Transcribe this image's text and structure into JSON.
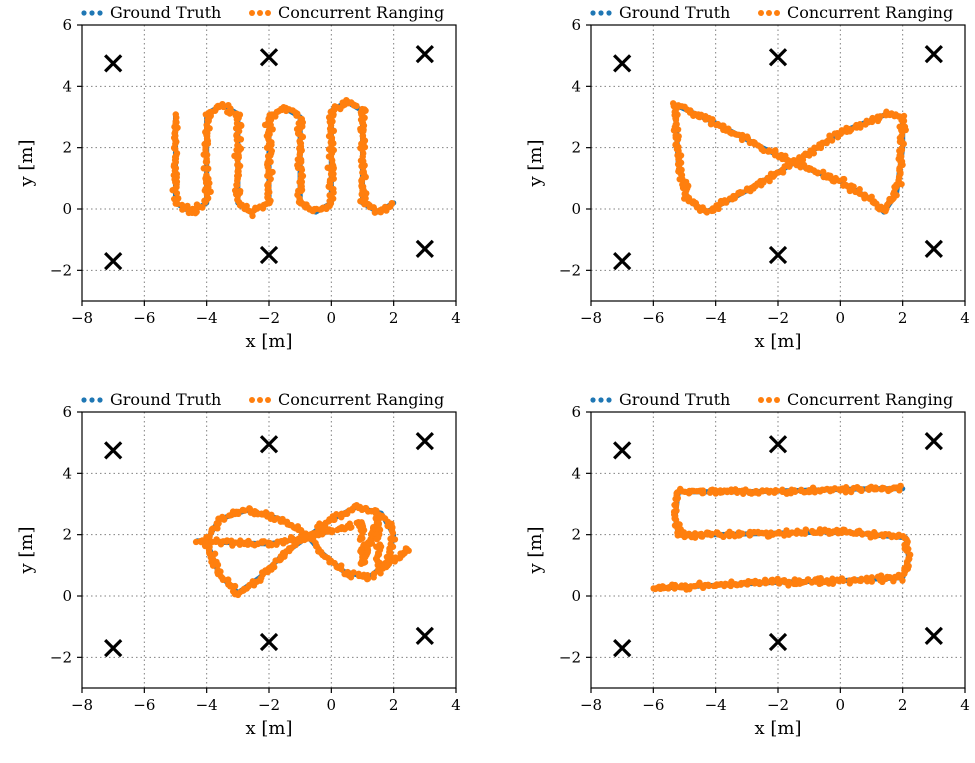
{
  "figure": {
    "colors": {
      "ground_truth": "#1f77b4",
      "concurrent_ranging": "#ff7f0e",
      "anchor": "#000000",
      "grid": "#808080"
    }
  },
  "chart_data": [
    {
      "type": "scatter",
      "title": "",
      "trajectory": "serpentine",
      "xlabel": "x [m]",
      "ylabel": "y [m]",
      "xlim": [
        -8,
        4
      ],
      "ylim": [
        -3,
        6
      ],
      "xticks": [
        -8,
        -6,
        -4,
        -2,
        0,
        2,
        4
      ],
      "yticks": [
        -2,
        0,
        2,
        4,
        6
      ],
      "xtick_labels": [
        "−8",
        "−6",
        "−4",
        "−2",
        "0",
        "2",
        "4"
      ],
      "ytick_labels": [
        "−2",
        "0",
        "2",
        "4",
        "6"
      ],
      "grid": true,
      "legend": "top",
      "legend_entries": [
        "Ground Truth",
        "Concurrent Ranging"
      ],
      "anchors": [
        [
          -7,
          4.75
        ],
        [
          -2,
          4.95
        ],
        [
          3,
          5.05
        ],
        [
          -7,
          -1.7
        ],
        [
          -2,
          -1.5
        ],
        [
          3,
          -1.3
        ]
      ],
      "series": [
        {
          "name": "Ground Truth",
          "points": [
            [
              -5,
              3
            ],
            [
              -5,
              2
            ],
            [
              -5,
              1
            ],
            [
              -5,
              0.2
            ],
            [
              -4.5,
              -0.1
            ],
            [
              -4,
              0.2
            ],
            [
              -4,
              1
            ],
            [
              -4,
              2
            ],
            [
              -4,
              3.1
            ],
            [
              -3.5,
              3.4
            ],
            [
              -3,
              3.1
            ],
            [
              -3,
              2
            ],
            [
              -3,
              1
            ],
            [
              -3,
              0.2
            ],
            [
              -2.6,
              -0.1
            ],
            [
              -2,
              0.2
            ],
            [
              -2,
              1
            ],
            [
              -2,
              2
            ],
            [
              -2,
              3
            ],
            [
              -1.5,
              3.3
            ],
            [
              -1,
              3
            ],
            [
              -1,
              2
            ],
            [
              -1,
              1
            ],
            [
              -1,
              0.2
            ],
            [
              -0.5,
              -0.1
            ],
            [
              0,
              0.2
            ],
            [
              0,
              1
            ],
            [
              0,
              2
            ],
            [
              0,
              3.2
            ],
            [
              0.5,
              3.5
            ],
            [
              1,
              3.2
            ],
            [
              1,
              2
            ],
            [
              1,
              1
            ],
            [
              1,
              0.2
            ],
            [
              1.5,
              -0.1
            ],
            [
              2,
              0.2
            ]
          ]
        },
        {
          "name": "Concurrent Ranging",
          "points": [
            [
              -5,
              3
            ],
            [
              -5,
              2
            ],
            [
              -5,
              1
            ],
            [
              -5,
              0.2
            ],
            [
              -4.5,
              -0.1
            ],
            [
              -4,
              0.2
            ],
            [
              -4,
              1
            ],
            [
              -4,
              2
            ],
            [
              -4,
              3.1
            ],
            [
              -3.5,
              3.4
            ],
            [
              -3,
              3.1
            ],
            [
              -3,
              2
            ],
            [
              -3,
              1
            ],
            [
              -3,
              0.2
            ],
            [
              -2.6,
              -0.1
            ],
            [
              -2,
              0.2
            ],
            [
              -2,
              1
            ],
            [
              -2,
              2
            ],
            [
              -2,
              3
            ],
            [
              -1.5,
              3.3
            ],
            [
              -1,
              3
            ],
            [
              -1,
              2
            ],
            [
              -1,
              1
            ],
            [
              -1,
              0.2
            ],
            [
              -0.5,
              -0.1
            ],
            [
              0,
              0.2
            ],
            [
              0,
              1
            ],
            [
              0,
              2
            ],
            [
              0,
              3.2
            ],
            [
              0.5,
              3.5
            ],
            [
              1,
              3.2
            ],
            [
              1,
              2
            ],
            [
              1,
              1
            ],
            [
              1,
              0.2
            ],
            [
              1.5,
              -0.1
            ],
            [
              2,
              0.2
            ]
          ]
        }
      ]
    },
    {
      "type": "scatter",
      "title": "",
      "trajectory": "bowtie",
      "xlabel": "x [m]",
      "ylabel": "y [m]",
      "xlim": [
        -8,
        4
      ],
      "ylim": [
        -3,
        6
      ],
      "xticks": [
        -8,
        -6,
        -4,
        -2,
        0,
        2,
        4
      ],
      "yticks": [
        -2,
        0,
        2,
        4,
        6
      ],
      "xtick_labels": [
        "−8",
        "−6",
        "−4",
        "−2",
        "0",
        "2",
        "4"
      ],
      "ytick_labels": [
        "−2",
        "0",
        "2",
        "4",
        "6"
      ],
      "grid": true,
      "legend": "top",
      "legend_entries": [
        "Ground Truth",
        "Concurrent Ranging"
      ],
      "anchors": [
        [
          -7,
          4.75
        ],
        [
          -2,
          4.95
        ],
        [
          3,
          5.05
        ],
        [
          -7,
          -1.7
        ],
        [
          -2,
          -1.5
        ],
        [
          3,
          -1.3
        ]
      ],
      "series": [
        {
          "name": "Ground Truth",
          "points": [
            [
              -5.3,
              3.4
            ],
            [
              -4,
              2.8
            ],
            [
              -2.5,
              2
            ],
            [
              -1.5,
              1.5
            ],
            [
              0,
              0.9
            ],
            [
              1,
              0.3
            ],
            [
              1.4,
              -0.1
            ],
            [
              1.8,
              0.5
            ],
            [
              2,
              2
            ],
            [
              2,
              3
            ],
            [
              1.5,
              3.1
            ],
            [
              0,
              2.5
            ],
            [
              -1.5,
              1.5
            ],
            [
              -3,
              0.6
            ],
            [
              -4.3,
              -0.1
            ],
            [
              -4.9,
              0.3
            ],
            [
              -5.2,
              1.5
            ],
            [
              -5.3,
              3.4
            ]
          ]
        },
        {
          "name": "Concurrent Ranging",
          "points": [
            [
              -5.3,
              3.4
            ],
            [
              -4,
              2.8
            ],
            [
              -2.5,
              2
            ],
            [
              -1.5,
              1.5
            ],
            [
              0,
              0.9
            ],
            [
              1,
              0.3
            ],
            [
              1.4,
              -0.1
            ],
            [
              1.8,
              0.5
            ],
            [
              2,
              2
            ],
            [
              2,
              3
            ],
            [
              1.5,
              3.1
            ],
            [
              0,
              2.5
            ],
            [
              -1.5,
              1.5
            ],
            [
              -3,
              0.6
            ],
            [
              -4.3,
              -0.1
            ],
            [
              -4.9,
              0.3
            ],
            [
              -5.2,
              1.5
            ],
            [
              -5.3,
              3.4
            ]
          ]
        }
      ]
    },
    {
      "type": "scatter",
      "title": "",
      "trajectory": "figure-eight",
      "xlabel": "x [m]",
      "ylabel": "y [m]",
      "xlim": [
        -8,
        4
      ],
      "ylim": [
        -3,
        6
      ],
      "xticks": [
        -8,
        -6,
        -4,
        -2,
        0,
        2,
        4
      ],
      "yticks": [
        -2,
        0,
        2,
        4,
        6
      ],
      "xtick_labels": [
        "−8",
        "−6",
        "−4",
        "−2",
        "0",
        "2",
        "4"
      ],
      "ytick_labels": [
        "−2",
        "0",
        "2",
        "4",
        "6"
      ],
      "grid": true,
      "legend": "top",
      "legend_entries": [
        "Ground Truth",
        "Concurrent Ranging"
      ],
      "anchors": [
        [
          -7,
          4.75
        ],
        [
          -2,
          4.95
        ],
        [
          3,
          5.05
        ],
        [
          -7,
          -1.7
        ],
        [
          -2,
          -1.5
        ],
        [
          3,
          -1.3
        ]
      ],
      "series": [
        {
          "name": "Ground Truth",
          "points": [
            [
              -4.3,
              1.8
            ],
            [
              -3.5,
              1.75
            ],
            [
              -2,
              1.7
            ],
            [
              -0.8,
              1.9
            ],
            [
              0,
              2.5
            ],
            [
              0.8,
              2.9
            ],
            [
              1.6,
              2.7
            ],
            [
              2,
              2
            ],
            [
              1.8,
              1.1
            ],
            [
              1.2,
              0.6
            ],
            [
              0.4,
              0.8
            ],
            [
              -0.3,
              1.4
            ],
            [
              -0.8,
              2
            ],
            [
              -1.6,
              2.5
            ],
            [
              -2.7,
              2.8
            ],
            [
              -3.6,
              2.5
            ],
            [
              -4,
              1.8
            ],
            [
              -3.6,
              0.7
            ],
            [
              -3,
              0.1
            ],
            [
              -2.3,
              0.6
            ],
            [
              -1.5,
              1.4
            ],
            [
              -0.8,
              1.9
            ]
          ]
        },
        {
          "name": "Concurrent Ranging",
          "points": [
            [
              -4.3,
              1.8
            ],
            [
              -3.5,
              1.75
            ],
            [
              -2,
              1.7
            ],
            [
              -0.8,
              1.9
            ],
            [
              0,
              2.5
            ],
            [
              0.8,
              2.9
            ],
            [
              1.6,
              2.7
            ],
            [
              2,
              2
            ],
            [
              1.8,
              1.1
            ],
            [
              1.2,
              0.6
            ],
            [
              0.4,
              0.8
            ],
            [
              -0.3,
              1.4
            ],
            [
              -0.8,
              2
            ],
            [
              -1.6,
              2.5
            ],
            [
              -2.7,
              2.8
            ],
            [
              -3.6,
              2.5
            ],
            [
              -4,
              1.8
            ],
            [
              -3.6,
              0.7
            ],
            [
              -3,
              0.1
            ],
            [
              -2.3,
              0.6
            ],
            [
              -1.5,
              1.4
            ],
            [
              -0.8,
              1.9
            ],
            [
              1,
              2.4
            ],
            [
              1,
              1
            ],
            [
              1.5,
              2.6
            ],
            [
              1.5,
              0.8
            ],
            [
              2.5,
              1.6
            ]
          ]
        }
      ]
    },
    {
      "type": "scatter",
      "title": "",
      "trajectory": "lawnmower",
      "xlabel": "x [m]",
      "ylabel": "y [m]",
      "xlim": [
        -8,
        4
      ],
      "ylim": [
        -3,
        6
      ],
      "xticks": [
        -8,
        -6,
        -4,
        -2,
        0,
        2,
        4
      ],
      "yticks": [
        -2,
        0,
        2,
        4,
        6
      ],
      "xtick_labels": [
        "−8",
        "−6",
        "−4",
        "−2",
        "0",
        "2",
        "4"
      ],
      "ytick_labels": [
        "−2",
        "0",
        "2",
        "4",
        "6"
      ],
      "grid": true,
      "legend": "top",
      "legend_entries": [
        "Ground Truth",
        "Concurrent Ranging"
      ],
      "anchors": [
        [
          -7,
          4.75
        ],
        [
          -2,
          4.95
        ],
        [
          3,
          5.05
        ],
        [
          -7,
          -1.7
        ],
        [
          -2,
          -1.5
        ],
        [
          3,
          -1.3
        ]
      ],
      "series": [
        {
          "name": "Ground Truth",
          "points": [
            [
              -6,
              0.25
            ],
            [
              -4,
              0.35
            ],
            [
              -2,
              0.45
            ],
            [
              0,
              0.5
            ],
            [
              2,
              0.6
            ],
            [
              2.2,
              1.2
            ],
            [
              2.1,
              1.9
            ],
            [
              0,
              2.1
            ],
            [
              -2,
              2.05
            ],
            [
              -4,
              2
            ],
            [
              -5.2,
              2
            ],
            [
              -5.3,
              2.6
            ],
            [
              -5.2,
              3.4
            ],
            [
              -3,
              3.4
            ],
            [
              -1,
              3.45
            ],
            [
              1,
              3.5
            ],
            [
              2,
              3.5
            ]
          ]
        },
        {
          "name": "Concurrent Ranging",
          "points": [
            [
              -6,
              0.25
            ],
            [
              -4,
              0.35
            ],
            [
              -2,
              0.45
            ],
            [
              0,
              0.5
            ],
            [
              2,
              0.6
            ],
            [
              2.2,
              1.2
            ],
            [
              2.1,
              1.9
            ],
            [
              0,
              2.1
            ],
            [
              -2,
              2.05
            ],
            [
              -4,
              2
            ],
            [
              -5.2,
              2
            ],
            [
              -5.3,
              2.6
            ],
            [
              -5.2,
              3.4
            ],
            [
              -3,
              3.4
            ],
            [
              -1,
              3.45
            ],
            [
              1,
              3.5
            ],
            [
              2,
              3.5
            ]
          ]
        }
      ]
    }
  ]
}
